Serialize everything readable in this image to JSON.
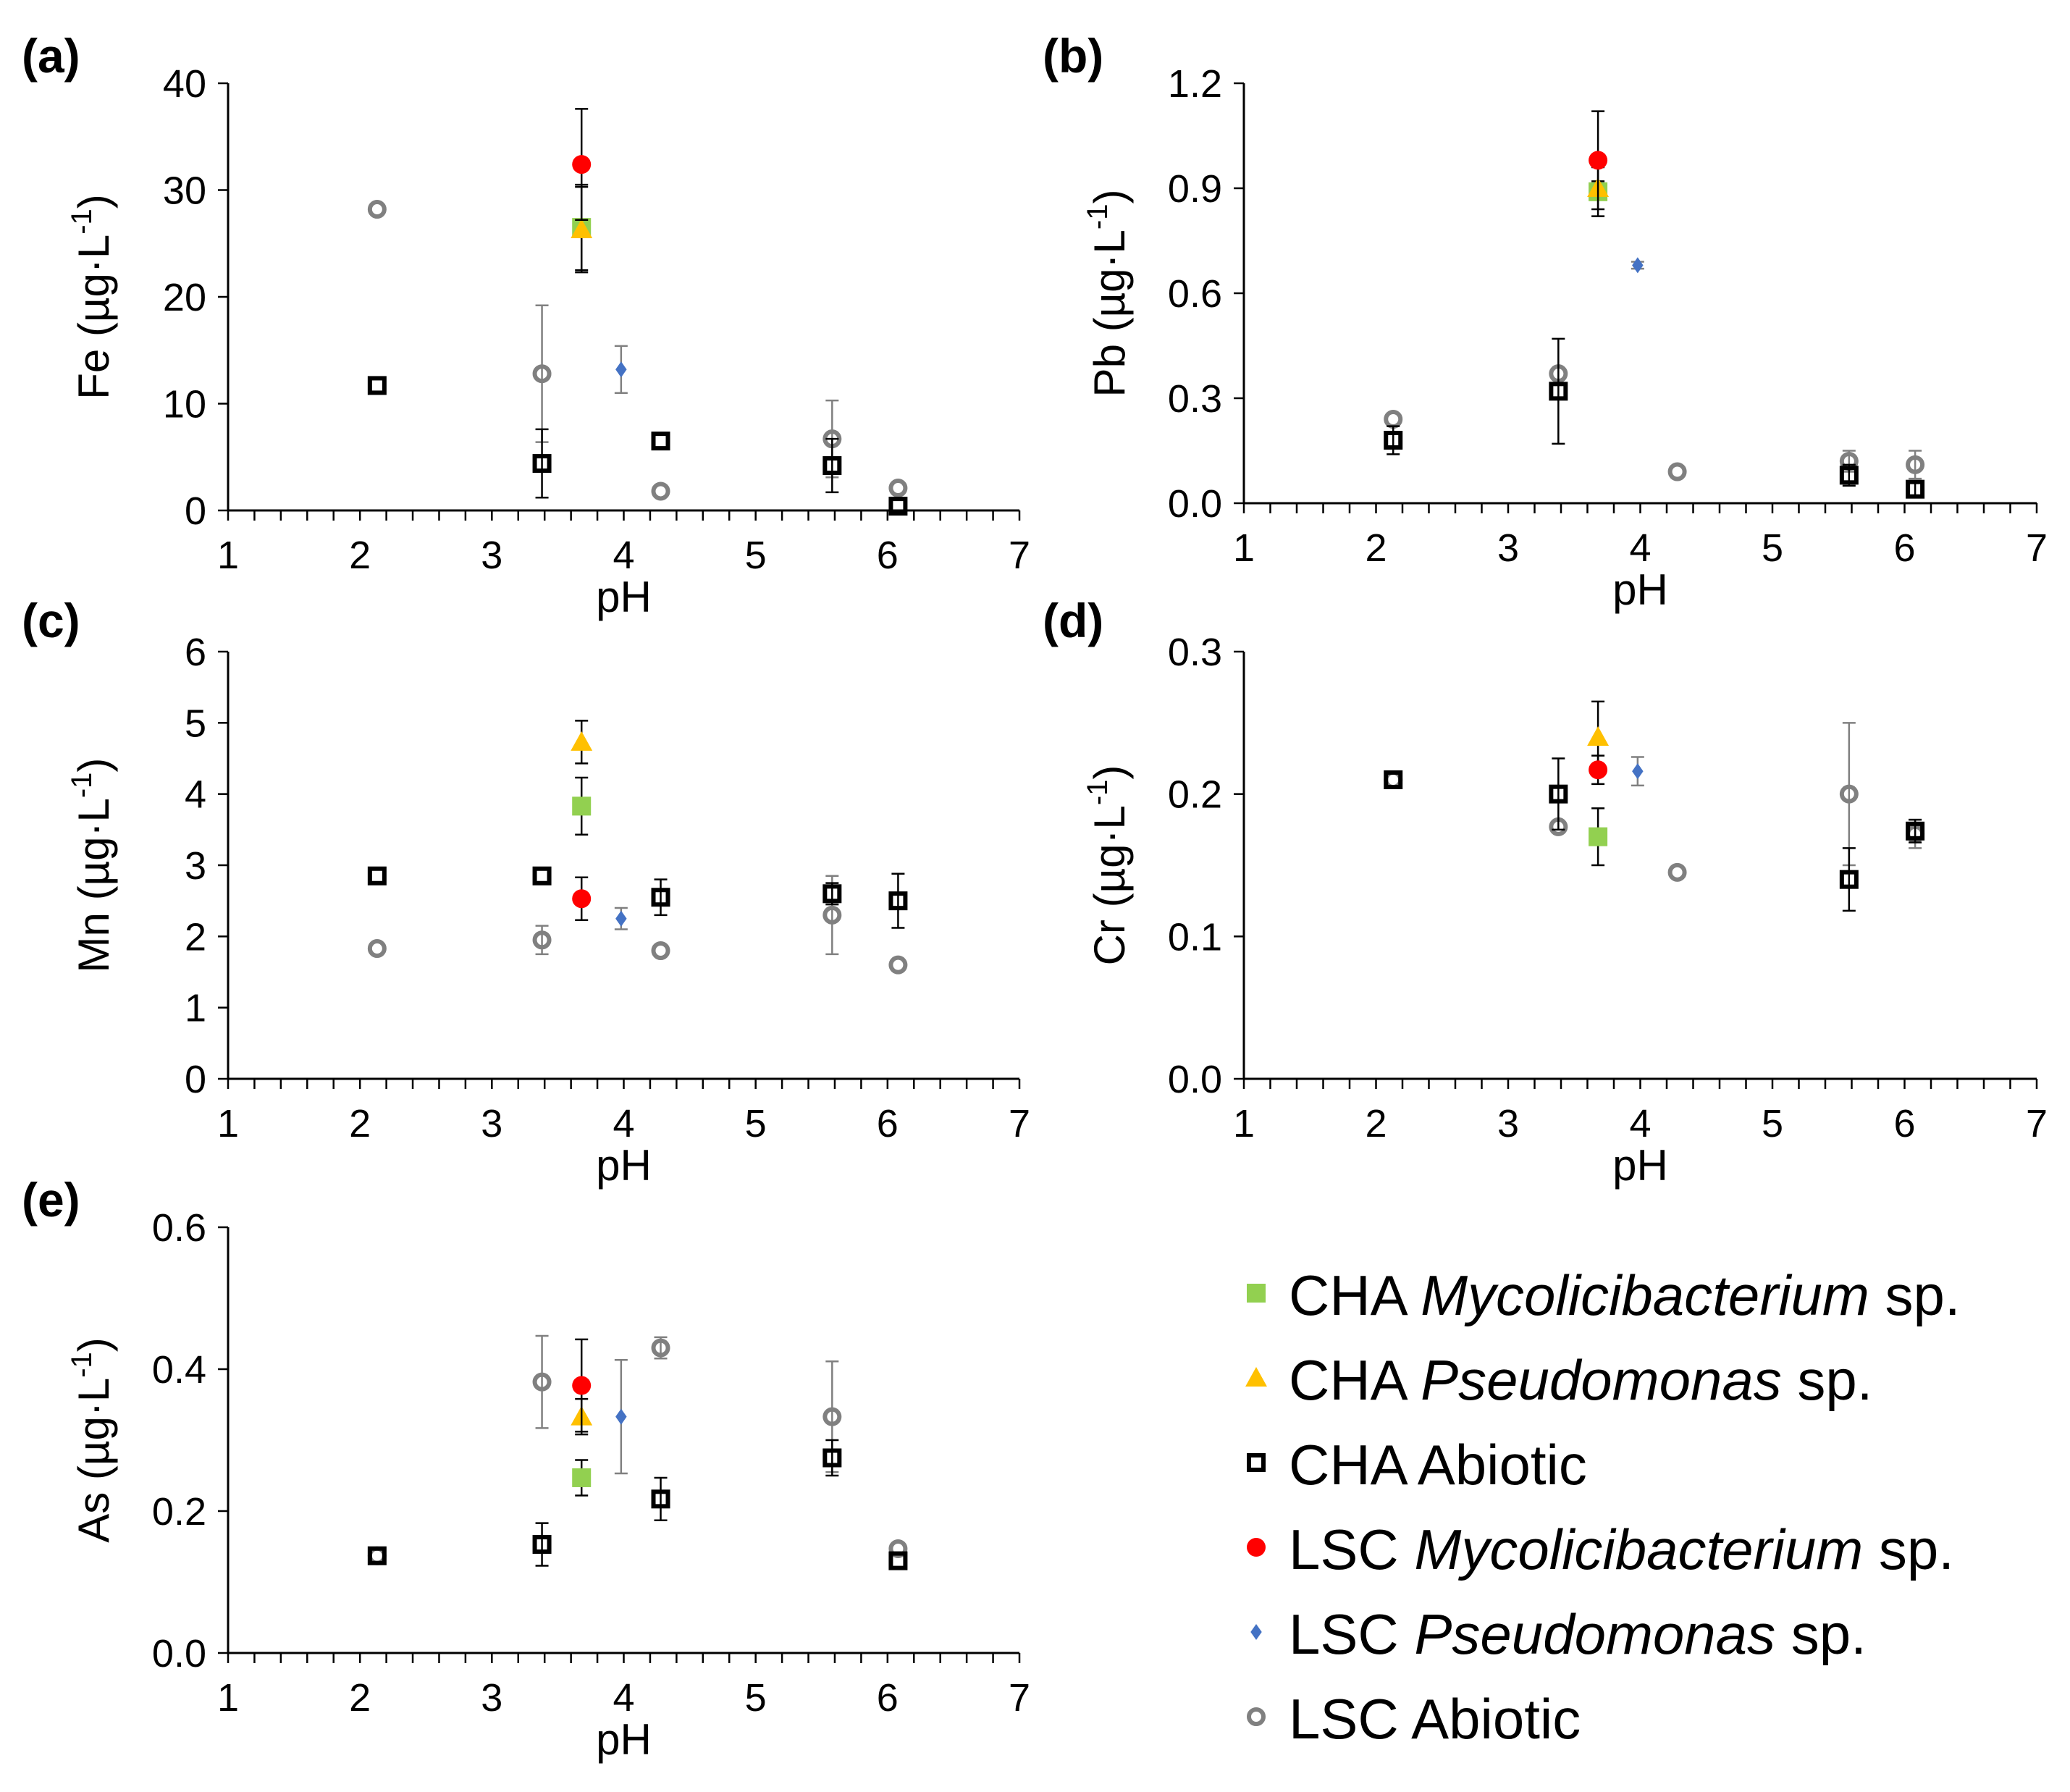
{
  "series_styles": [
    {
      "key": "cha_myco",
      "color": "#92d050",
      "marker": "square-filled"
    },
    {
      "key": "cha_pseudo",
      "color": "#ffc000",
      "marker": "triangle-filled"
    },
    {
      "key": "cha_abiotic",
      "color": "#000000",
      "marker": "square-open"
    },
    {
      "key": "lsc_myco",
      "color": "#ff0000",
      "marker": "circle-filled"
    },
    {
      "key": "lsc_pseudo",
      "color": "#4472c4",
      "marker": "diamond-filled"
    },
    {
      "key": "lsc_abiotic",
      "color": "#808080",
      "marker": "circle-open"
    }
  ],
  "legend": [
    {
      "key": "cha_myco",
      "prefix": "CHA ",
      "italic": "Mycolicibacterium",
      "suffix": " sp."
    },
    {
      "key": "cha_pseudo",
      "prefix": "CHA ",
      "italic": "Pseudomonas",
      "suffix": " sp."
    },
    {
      "key": "cha_abiotic",
      "prefix": "CHA Abiotic",
      "italic": "",
      "suffix": ""
    },
    {
      "key": "lsc_myco",
      "prefix": "LSC ",
      "italic": "Mycolicibacterium",
      "suffix": " sp."
    },
    {
      "key": "lsc_pseudo",
      "prefix": "LSC ",
      "italic": "Pseudomonas",
      "suffix": " sp."
    },
    {
      "key": "lsc_abiotic",
      "prefix": "LSC Abiotic",
      "italic": "",
      "suffix": ""
    }
  ],
  "chart_data": [
    {
      "panel": "(a)",
      "type": "scatter",
      "xlabel": "pH",
      "ylabel_element": "Fe",
      "ylabel_unit": " (µg·L",
      "ylabel_sup": "-1",
      "ylabel_close": ")",
      "xlim": [
        1,
        7
      ],
      "xticks": [
        1,
        2,
        3,
        4,
        5,
        6,
        7
      ],
      "ylim": [
        0,
        40
      ],
      "yticks": [
        0,
        10,
        20,
        30,
        40
      ],
      "ytick_labels": [
        "0",
        "10",
        "20",
        "30",
        "40"
      ],
      "series": [
        {
          "key": "cha_myco",
          "points": [
            {
              "x": 3.68,
              "y": 26.5,
              "err": 4.0
            }
          ]
        },
        {
          "key": "cha_pseudo",
          "points": [
            {
              "x": 3.68,
              "y": 26.3,
              "err": 4.0
            }
          ]
        },
        {
          "key": "cha_abiotic",
          "points": [
            {
              "x": 2.13,
              "y": 11.7,
              "err": 0
            },
            {
              "x": 3.38,
              "y": 4.4,
              "err": 3.2
            },
            {
              "x": 4.28,
              "y": 6.5,
              "err": 0
            },
            {
              "x": 5.58,
              "y": 4.2,
              "err": 2.5
            },
            {
              "x": 6.08,
              "y": 0.4,
              "err": 0
            }
          ]
        },
        {
          "key": "lsc_myco",
          "points": [
            {
              "x": 3.68,
              "y": 32.4,
              "err": 5.2
            }
          ]
        },
        {
          "key": "lsc_pseudo",
          "points": [
            {
              "x": 3.98,
              "y": 13.2,
              "err": 2.2
            }
          ]
        },
        {
          "key": "lsc_abiotic",
          "points": [
            {
              "x": 2.13,
              "y": 28.2,
              "err": 0
            },
            {
              "x": 3.38,
              "y": 12.8,
              "err": 6.4
            },
            {
              "x": 4.28,
              "y": 1.8,
              "err": 0
            },
            {
              "x": 5.58,
              "y": 6.7,
              "err": 3.6
            },
            {
              "x": 6.08,
              "y": 2.1,
              "err": 0
            }
          ]
        }
      ]
    },
    {
      "panel": "(b)",
      "type": "scatter",
      "xlabel": "pH",
      "ylabel_element": "Pb",
      "ylabel_unit": " (µg·L",
      "ylabel_sup": "-1",
      "ylabel_close": ")",
      "xlim": [
        1,
        7
      ],
      "xticks": [
        1,
        2,
        3,
        4,
        5,
        6,
        7
      ],
      "ylim": [
        0,
        1.2
      ],
      "yticks": [
        0,
        0.3,
        0.6,
        0.9,
        1.2
      ],
      "ytick_labels": [
        "0.0",
        "0.3",
        "0.6",
        "0.9",
        "1.2"
      ],
      "series": [
        {
          "key": "cha_myco",
          "points": [
            {
              "x": 3.68,
              "y": 0.89,
              "err": 0.07
            }
          ]
        },
        {
          "key": "cha_pseudo",
          "points": [
            {
              "x": 3.68,
              "y": 0.9,
              "err": 0.02
            }
          ]
        },
        {
          "key": "cha_abiotic",
          "points": [
            {
              "x": 2.13,
              "y": 0.18,
              "err": 0.04
            },
            {
              "x": 3.38,
              "y": 0.32,
              "err": 0.15
            },
            {
              "x": 5.58,
              "y": 0.08,
              "err": 0.03
            },
            {
              "x": 6.08,
              "y": 0.04,
              "err": 0.02
            }
          ]
        },
        {
          "key": "lsc_myco",
          "points": [
            {
              "x": 3.68,
              "y": 0.98,
              "err": 0.14
            }
          ]
        },
        {
          "key": "lsc_pseudo",
          "points": [
            {
              "x": 3.98,
              "y": 0.68,
              "err": 0.01
            }
          ]
        },
        {
          "key": "lsc_abiotic",
          "points": [
            {
              "x": 2.13,
              "y": 0.24,
              "err": 0
            },
            {
              "x": 3.38,
              "y": 0.37,
              "err": 0
            },
            {
              "x": 4.28,
              "y": 0.09,
              "err": 0
            },
            {
              "x": 5.58,
              "y": 0.12,
              "err": 0.03
            },
            {
              "x": 6.08,
              "y": 0.11,
              "err": 0.04
            }
          ]
        }
      ]
    },
    {
      "panel": "(c)",
      "type": "scatter",
      "xlabel": "pH",
      "ylabel_element": "Mn",
      "ylabel_unit": " (µg·L",
      "ylabel_sup": "-1",
      "ylabel_close": ")",
      "xlim": [
        1,
        7
      ],
      "xticks": [
        1,
        2,
        3,
        4,
        5,
        6,
        7
      ],
      "ylim": [
        0,
        6
      ],
      "yticks": [
        0,
        1,
        2,
        3,
        4,
        5,
        6
      ],
      "ytick_labels": [
        "0",
        "1",
        "2",
        "3",
        "4",
        "5",
        "6"
      ],
      "series": [
        {
          "key": "cha_myco",
          "points": [
            {
              "x": 3.68,
              "y": 3.83,
              "err": 0.4
            }
          ]
        },
        {
          "key": "cha_pseudo",
          "points": [
            {
              "x": 3.68,
              "y": 4.73,
              "err": 0.3
            }
          ]
        },
        {
          "key": "cha_abiotic",
          "points": [
            {
              "x": 2.13,
              "y": 2.85,
              "err": 0
            },
            {
              "x": 3.38,
              "y": 2.85,
              "err": 0
            },
            {
              "x": 4.28,
              "y": 2.55,
              "err": 0.25
            },
            {
              "x": 5.58,
              "y": 2.6,
              "err": 0.15
            },
            {
              "x": 6.08,
              "y": 2.5,
              "err": 0.38
            }
          ]
        },
        {
          "key": "lsc_myco",
          "points": [
            {
              "x": 3.68,
              "y": 2.53,
              "err": 0.3
            }
          ]
        },
        {
          "key": "lsc_pseudo",
          "points": [
            {
              "x": 3.98,
              "y": 2.25,
              "err": 0.15
            }
          ]
        },
        {
          "key": "lsc_abiotic",
          "points": [
            {
              "x": 2.13,
              "y": 1.83,
              "err": 0
            },
            {
              "x": 3.38,
              "y": 1.95,
              "err": 0.2
            },
            {
              "x": 4.28,
              "y": 1.8,
              "err": 0
            },
            {
              "x": 5.58,
              "y": 2.3,
              "err": 0.55
            },
            {
              "x": 6.08,
              "y": 1.6,
              "err": 0
            }
          ]
        }
      ]
    },
    {
      "panel": "(d)",
      "type": "scatter",
      "xlabel": "pH",
      "ylabel_element": "Cr",
      "ylabel_unit": " (µg·L",
      "ylabel_sup": "-1",
      "ylabel_close": ")",
      "xlim": [
        1,
        7
      ],
      "xticks": [
        1,
        2,
        3,
        4,
        5,
        6,
        7
      ],
      "ylim": [
        0,
        0.3
      ],
      "yticks": [
        0,
        0.1,
        0.2,
        0.3
      ],
      "ytick_labels": [
        "0.0",
        "0.1",
        "0.2",
        "0.3"
      ],
      "series": [
        {
          "key": "cha_myco",
          "points": [
            {
              "x": 3.68,
              "y": 0.17,
              "err": 0.02
            }
          ]
        },
        {
          "key": "cha_pseudo",
          "points": [
            {
              "x": 3.68,
              "y": 0.24,
              "err": 0.025
            }
          ]
        },
        {
          "key": "cha_abiotic",
          "points": [
            {
              "x": 2.13,
              "y": 0.21,
              "err": 0
            },
            {
              "x": 3.38,
              "y": 0.2,
              "err": 0.025
            },
            {
              "x": 5.58,
              "y": 0.14,
              "err": 0.022
            },
            {
              "x": 6.08,
              "y": 0.174,
              "err": 0.008
            }
          ]
        },
        {
          "key": "lsc_myco",
          "points": [
            {
              "x": 3.68,
              "y": 0.217,
              "err": 0.01
            }
          ]
        },
        {
          "key": "lsc_pseudo",
          "points": [
            {
              "x": 3.98,
              "y": 0.216,
              "err": 0.01
            }
          ]
        },
        {
          "key": "lsc_abiotic",
          "points": [
            {
              "x": 2.13,
              "y": 0.21,
              "err": 0
            },
            {
              "x": 3.38,
              "y": 0.177,
              "err": 0
            },
            {
              "x": 4.28,
              "y": 0.145,
              "err": 0
            },
            {
              "x": 5.58,
              "y": 0.2,
              "err": 0.05
            },
            {
              "x": 6.08,
              "y": 0.172,
              "err": 0.01
            }
          ]
        }
      ]
    },
    {
      "panel": "(e)",
      "type": "scatter",
      "xlabel": "pH",
      "ylabel_element": "As",
      "ylabel_unit": " (µg·L",
      "ylabel_sup": "-1",
      "ylabel_close": ")",
      "xlim": [
        1,
        7
      ],
      "xticks": [
        1,
        2,
        3,
        4,
        5,
        6,
        7
      ],
      "ylim": [
        0,
        0.6
      ],
      "yticks": [
        0,
        0.2,
        0.4,
        0.6
      ],
      "ytick_labels": [
        "0.0",
        "0.2",
        "0.4",
        "0.6"
      ],
      "series": [
        {
          "key": "cha_myco",
          "points": [
            {
              "x": 3.68,
              "y": 0.247,
              "err": 0.025
            }
          ]
        },
        {
          "key": "cha_pseudo",
          "points": [
            {
              "x": 3.68,
              "y": 0.333,
              "err": 0.025
            }
          ]
        },
        {
          "key": "cha_abiotic",
          "points": [
            {
              "x": 2.13,
              "y": 0.137,
              "err": 0
            },
            {
              "x": 3.38,
              "y": 0.153,
              "err": 0.03
            },
            {
              "x": 4.28,
              "y": 0.217,
              "err": 0.03
            },
            {
              "x": 5.58,
              "y": 0.275,
              "err": 0.025
            },
            {
              "x": 6.08,
              "y": 0.13,
              "err": 0
            }
          ]
        },
        {
          "key": "lsc_myco",
          "points": [
            {
              "x": 3.68,
              "y": 0.377,
              "err": 0.065
            }
          ]
        },
        {
          "key": "lsc_pseudo",
          "points": [
            {
              "x": 3.98,
              "y": 0.333,
              "err": 0.08
            }
          ]
        },
        {
          "key": "lsc_abiotic",
          "points": [
            {
              "x": 2.13,
              "y": 0.137,
              "err": 0
            },
            {
              "x": 3.38,
              "y": 0.382,
              "err": 0.065
            },
            {
              "x": 4.28,
              "y": 0.43,
              "err": 0.015
            },
            {
              "x": 5.58,
              "y": 0.333,
              "err": 0.078
            },
            {
              "x": 6.08,
              "y": 0.147,
              "err": 0
            }
          ]
        }
      ]
    }
  ]
}
